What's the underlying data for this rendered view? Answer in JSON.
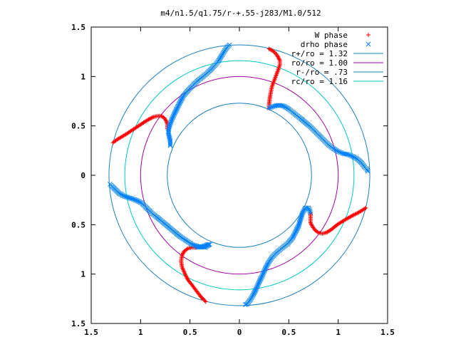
{
  "chart_data": {
    "type": "scatter",
    "title": "m4/n1.5/q1.75/r-+.55-j283/M1.0/512",
    "xlabel": "",
    "ylabel": "",
    "xlim": [
      -1.5,
      1.5
    ],
    "ylim": [
      -1.5,
      1.5
    ],
    "x_ticks": [
      -1.5,
      -1,
      -0.5,
      0,
      0.5,
      1,
      1.5
    ],
    "x_tick_labels": [
      "1.5",
      "1",
      "0.5",
      "0",
      "0.5",
      "1",
      "1.5"
    ],
    "y_ticks": [
      1.5,
      1,
      0.5,
      0,
      -0.5,
      -1,
      -1.5
    ],
    "y_tick_labels": [
      "1.5",
      "1",
      "0.5",
      "0",
      "0.5",
      "1",
      "1.5"
    ],
    "grid": false,
    "legend_position": "top-right",
    "colors": {
      "w_phase": "#ff0000",
      "drho_phase": "#0080ff",
      "r_plus": "#1a7fc0",
      "r_o": "#a000a0",
      "r_minus": "#1a7fc0",
      "r_c": "#00c8c8"
    },
    "series": [
      {
        "name": "W phase",
        "kind": "points",
        "marker": "+",
        "color_key": "w_phase",
        "points": [
          [
            0.3,
            1.28
          ],
          [
            0.32,
            1.27
          ],
          [
            0.35,
            1.25
          ],
          [
            0.37,
            1.23
          ],
          [
            0.39,
            1.2
          ],
          [
            0.41,
            1.16
          ],
          [
            0.41,
            1.12
          ],
          [
            0.39,
            1.06
          ],
          [
            0.36,
            0.98
          ],
          [
            0.33,
            0.9
          ],
          [
            0.31,
            0.8
          ],
          [
            0.3,
            0.72
          ],
          [
            0.3,
            0.68
          ],
          [
            1.28,
            -0.33
          ],
          [
            1.25,
            -0.35
          ],
          [
            1.2,
            -0.38
          ],
          [
            1.14,
            -0.41
          ],
          [
            1.07,
            -0.45
          ],
          [
            0.99,
            -0.5
          ],
          [
            0.93,
            -0.55
          ],
          [
            0.88,
            -0.58
          ],
          [
            0.84,
            -0.59
          ],
          [
            0.8,
            -0.58
          ],
          [
            0.77,
            -0.56
          ],
          [
            0.74,
            -0.52
          ],
          [
            0.72,
            -0.48
          ],
          [
            0.72,
            -0.43
          ],
          [
            0.72,
            -0.38
          ],
          [
            -0.34,
            -1.28
          ],
          [
            -0.36,
            -1.26
          ],
          [
            -0.39,
            -1.23
          ],
          [
            -0.42,
            -1.19
          ],
          [
            -0.45,
            -1.15
          ],
          [
            -0.48,
            -1.11
          ],
          [
            -0.52,
            -1.06
          ],
          [
            -0.55,
            -1.0
          ],
          [
            -0.58,
            -0.93
          ],
          [
            -0.59,
            -0.87
          ],
          [
            -0.58,
            -0.81
          ],
          [
            -0.56,
            -0.77
          ],
          [
            -0.52,
            -0.74
          ],
          [
            -0.48,
            -0.73
          ],
          [
            -0.43,
            -0.73
          ],
          [
            -1.28,
            0.33
          ],
          [
            -1.24,
            0.36
          ],
          [
            -1.19,
            0.39
          ],
          [
            -1.14,
            0.42
          ],
          [
            -1.08,
            0.46
          ],
          [
            -1.02,
            0.5
          ],
          [
            -0.96,
            0.54
          ],
          [
            -0.91,
            0.57
          ],
          [
            -0.87,
            0.59
          ],
          [
            -0.83,
            0.6
          ],
          [
            -0.79,
            0.6
          ],
          [
            -0.76,
            0.58
          ],
          [
            -0.74,
            0.55
          ],
          [
            -0.73,
            0.52
          ],
          [
            -0.73,
            0.47
          ]
        ]
      },
      {
        "name": "drho phase",
        "kind": "points",
        "marker": "x",
        "color_key": "drho_phase",
        "points": [
          [
            -0.1,
            1.32
          ],
          [
            -0.12,
            1.3
          ],
          [
            -0.15,
            1.26
          ],
          [
            -0.18,
            1.21
          ],
          [
            -0.21,
            1.16
          ],
          [
            -0.25,
            1.11
          ],
          [
            -0.29,
            1.07
          ],
          [
            -0.33,
            1.03
          ],
          [
            -0.38,
            0.99
          ],
          [
            -0.42,
            0.96
          ],
          [
            -0.47,
            0.91
          ],
          [
            -0.52,
            0.86
          ],
          [
            -0.57,
            0.8
          ],
          [
            -0.6,
            0.74
          ],
          [
            -0.63,
            0.68
          ],
          [
            -0.66,
            0.62
          ],
          [
            -0.69,
            0.55
          ],
          [
            -0.71,
            0.49
          ],
          [
            -0.72,
            0.44
          ],
          [
            -0.71,
            0.39
          ],
          [
            -0.7,
            0.35
          ],
          [
            -0.7,
            0.3
          ],
          [
            0.3,
            0.68
          ],
          [
            0.35,
            0.7
          ],
          [
            0.4,
            0.71
          ],
          [
            0.45,
            0.7
          ],
          [
            0.5,
            0.67
          ],
          [
            0.55,
            0.63
          ],
          [
            0.6,
            0.59
          ],
          [
            0.66,
            0.54
          ],
          [
            0.72,
            0.49
          ],
          [
            0.78,
            0.43
          ],
          [
            0.84,
            0.37
          ],
          [
            0.9,
            0.31
          ],
          [
            0.95,
            0.27
          ],
          [
            1.0,
            0.24
          ],
          [
            1.05,
            0.22
          ],
          [
            1.1,
            0.21
          ],
          [
            1.15,
            0.19
          ],
          [
            1.2,
            0.16
          ],
          [
            1.24,
            0.12
          ],
          [
            1.27,
            0.08
          ],
          [
            1.29,
            0.06
          ],
          [
            1.3,
            0.04
          ],
          [
            0.72,
            -0.38
          ],
          [
            0.7,
            -0.33
          ],
          [
            0.67,
            -0.33
          ],
          [
            0.64,
            -0.38
          ],
          [
            0.62,
            -0.44
          ],
          [
            0.6,
            -0.51
          ],
          [
            0.57,
            -0.57
          ],
          [
            0.54,
            -0.63
          ],
          [
            0.49,
            -0.69
          ],
          [
            0.44,
            -0.73
          ],
          [
            0.39,
            -0.77
          ],
          [
            0.33,
            -0.83
          ],
          [
            0.29,
            -0.89
          ],
          [
            0.26,
            -0.95
          ],
          [
            0.23,
            -1.02
          ],
          [
            0.2,
            -1.08
          ],
          [
            0.17,
            -1.15
          ],
          [
            0.14,
            -1.21
          ],
          [
            0.11,
            -1.26
          ],
          [
            0.08,
            -1.3
          ],
          [
            0.06,
            -1.31
          ],
          [
            -0.43,
            -0.73
          ],
          [
            -0.37,
            -0.72
          ],
          [
            -0.32,
            -0.7
          ],
          [
            -0.3,
            -0.7
          ],
          [
            -0.35,
            -0.73
          ],
          [
            -0.42,
            -0.72
          ],
          [
            -0.48,
            -0.7
          ],
          [
            -0.54,
            -0.66
          ],
          [
            -0.6,
            -0.62
          ],
          [
            -0.66,
            -0.57
          ],
          [
            -0.72,
            -0.52
          ],
          [
            -0.78,
            -0.47
          ],
          [
            -0.84,
            -0.42
          ],
          [
            -0.89,
            -0.38
          ],
          [
            -0.94,
            -0.33
          ],
          [
            -0.99,
            -0.28
          ],
          [
            -1.05,
            -0.25
          ],
          [
            -1.11,
            -0.23
          ],
          [
            -1.17,
            -0.21
          ],
          [
            -1.22,
            -0.18
          ],
          [
            -1.26,
            -0.14
          ],
          [
            -1.29,
            -0.11
          ],
          [
            -1.31,
            -0.09
          ]
        ]
      },
      {
        "name": "r+/ro = 1.32",
        "kind": "circle",
        "radius": 1.32,
        "color_key": "r_plus"
      },
      {
        "name": "ro/ro = 1.00",
        "kind": "circle",
        "radius": 1.0,
        "color_key": "r_o"
      },
      {
        "name": "r-/ro = .73",
        "kind": "circle",
        "radius": 0.73,
        "color_key": "r_minus"
      },
      {
        "name": "rc/ro = 1.16",
        "kind": "circle",
        "radius": 1.16,
        "color_key": "r_c"
      }
    ]
  }
}
